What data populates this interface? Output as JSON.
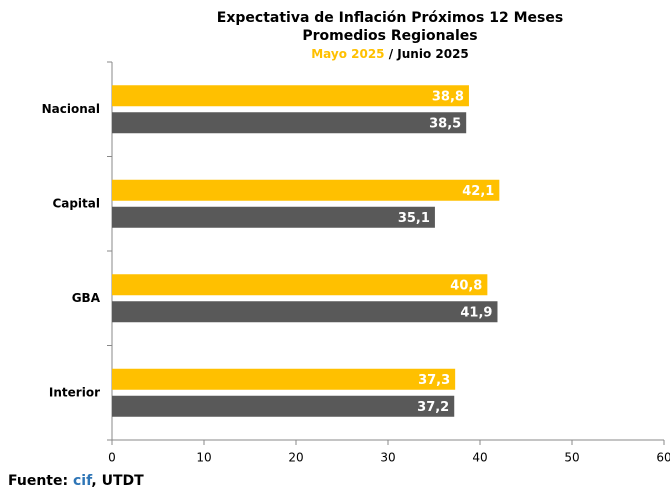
{
  "chart_data": {
    "type": "bar",
    "orientation": "horizontal",
    "title": "Expectativa de Inflación Próximos 12 Meses",
    "subtitle": "Promedios Regionales",
    "legend_separator": "/",
    "categories": [
      "Nacional",
      "Capital",
      "GBA",
      "Interior"
    ],
    "series": [
      {
        "name": "Mayo 2025",
        "color": "#ffc000",
        "values": [
          38.8,
          42.1,
          40.8,
          37.3
        ],
        "value_labels": [
          "38,8",
          "42,1",
          "40,8",
          "37,3"
        ]
      },
      {
        "name": "Junio 2025",
        "color": "#595959",
        "values": [
          38.5,
          35.1,
          41.9,
          37.2
        ],
        "value_labels": [
          "38,5",
          "35,1",
          "41,9",
          "37,2"
        ]
      }
    ],
    "xlim": [
      0,
      60
    ],
    "xticks": [
      0,
      10,
      20,
      30,
      40,
      50,
      60
    ],
    "source": [
      "Fuente: ",
      "cif",
      ", UTDT"
    ]
  }
}
